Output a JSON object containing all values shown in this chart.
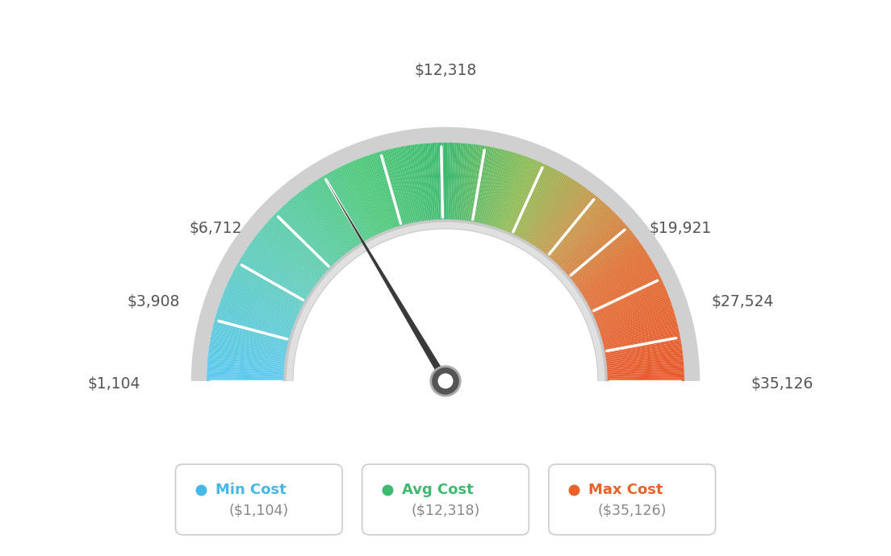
{
  "min_value": 1104,
  "max_value": 35126,
  "avg_value": 12318,
  "legend_items": [
    {
      "label": "Min Cost",
      "value": "($1,104)",
      "color": "#45b8e8"
    },
    {
      "label": "Avg Cost",
      "value": "($12,318)",
      "color": "#3dba6f"
    },
    {
      "label": "Max Cost",
      "value": "($35,126)",
      "color": "#e8622a"
    }
  ],
  "bg_color": "#ffffff",
  "label_positions": {
    "1104": [
      -1.08,
      -0.01,
      "right"
    ],
    "3908": [
      -0.94,
      0.28,
      "right"
    ],
    "6712": [
      -0.72,
      0.54,
      "right"
    ],
    "12318": [
      0.0,
      1.1,
      "center"
    ],
    "19921": [
      0.72,
      0.54,
      "left"
    ],
    "27524": [
      0.94,
      0.28,
      "left"
    ],
    "35126": [
      1.08,
      -0.01,
      "left"
    ]
  },
  "label_texts": {
    "1104": "$1,104",
    "3908": "$3,908",
    "6712": "$6,712",
    "12318": "$12,318",
    "19921": "$19,921",
    "27524": "$27,524",
    "35126": "$35,126"
  },
  "color_stops": [
    [
      0.0,
      "#5bc8f0"
    ],
    [
      0.2,
      "#60cdb8"
    ],
    [
      0.38,
      "#4ec87a"
    ],
    [
      0.5,
      "#3dba6f"
    ],
    [
      0.62,
      "#8fbb55"
    ],
    [
      0.72,
      "#c8964a"
    ],
    [
      0.82,
      "#e07035"
    ],
    [
      1.0,
      "#e8572a"
    ]
  ]
}
